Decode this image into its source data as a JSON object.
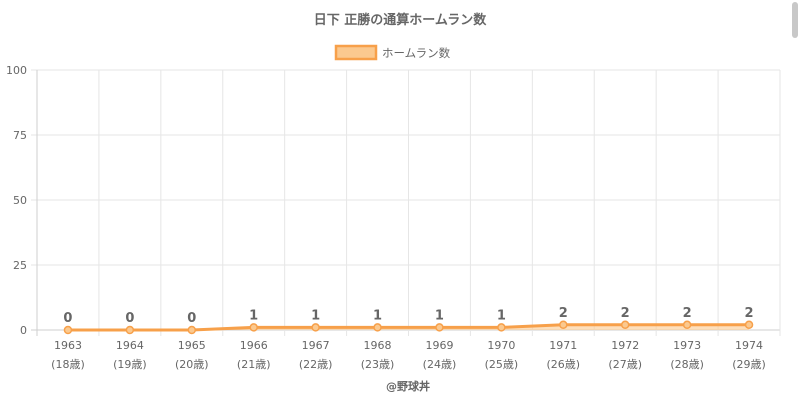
{
  "chart_data": {
    "type": "line",
    "title": "日下 正勝の通算ホームラン数",
    "categories": [
      "1963",
      "1964",
      "1965",
      "1966",
      "1967",
      "1968",
      "1969",
      "1970",
      "1971",
      "1972",
      "1973",
      "1974"
    ],
    "sub_labels": [
      "(18歳)",
      "(19歳)",
      "(20歳)",
      "(21歳)",
      "(22歳)",
      "(23歳)",
      "(24歳)",
      "(25歳)",
      "(26歳)",
      "(27歳)",
      "(28歳)",
      "(29歳)"
    ],
    "series": [
      {
        "name": "ホームラン数",
        "values": [
          0,
          0,
          0,
          1,
          1,
          1,
          1,
          1,
          2,
          2,
          2,
          2
        ]
      }
    ],
    "ylim": [
      0,
      100
    ],
    "yticks": [
      0,
      25,
      50,
      75,
      100
    ],
    "grid": true,
    "legend": "top-center",
    "line_color": "#f7a04a",
    "fill_color": "#fbc98f"
  },
  "credit": "@野球丼"
}
